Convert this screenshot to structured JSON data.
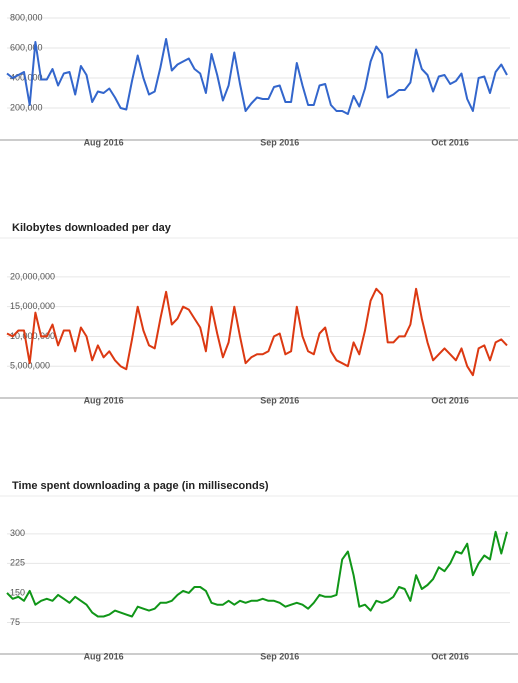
{
  "chart_data": [
    {
      "type": "line",
      "categories": [
        null,
        null,
        null,
        null,
        null,
        null,
        null,
        null,
        null,
        null,
        null,
        null,
        null,
        null,
        null,
        null,
        null,
        "Aug 2016",
        null,
        null,
        null,
        null,
        null,
        null,
        null,
        null,
        null,
        null,
        null,
        null,
        null,
        null,
        null,
        null,
        null,
        null,
        null,
        null,
        null,
        null,
        null,
        null,
        null,
        null,
        null,
        null,
        null,
        null,
        "Sep 2016",
        null,
        null,
        null,
        null,
        null,
        null,
        null,
        null,
        null,
        null,
        null,
        null,
        null,
        null,
        null,
        null,
        null,
        null,
        null,
        null,
        null,
        null,
        null,
        null,
        null,
        null,
        null,
        null,
        null,
        "Oct 2016",
        null,
        null,
        null,
        null,
        null,
        null,
        null,
        null,
        null,
        null
      ],
      "series": [
        {
          "color": "#3366cc",
          "values": [
            430000,
            400000,
            420000,
            440000,
            220000,
            640000,
            390000,
            390000,
            460000,
            350000,
            430000,
            440000,
            290000,
            480000,
            420000,
            240000,
            310000,
            300000,
            330000,
            270000,
            200000,
            190000,
            380000,
            550000,
            400000,
            290000,
            310000,
            470000,
            660000,
            450000,
            490000,
            510000,
            530000,
            460000,
            430000,
            300000,
            560000,
            420000,
            250000,
            350000,
            570000,
            360000,
            180000,
            230000,
            270000,
            260000,
            260000,
            340000,
            350000,
            240000,
            240000,
            500000,
            350000,
            220000,
            220000,
            350000,
            360000,
            220000,
            180000,
            180000,
            160000,
            280000,
            210000,
            330000,
            510000,
            610000,
            560000,
            270000,
            290000,
            320000,
            320000,
            370000,
            590000,
            460000,
            420000,
            310000,
            410000,
            420000,
            360000,
            380000,
            430000,
            260000,
            180000,
            400000,
            410000,
            300000,
            440000,
            490000,
            420000
          ]
        }
      ],
      "ylim": [
        0,
        880000
      ],
      "yticks": [
        {
          "value": 200000,
          "label": "200,000"
        },
        {
          "value": 400000,
          "label": "400,000"
        },
        {
          "value": 600000,
          "label": "600,000"
        },
        {
          "value": 800000,
          "label": "800,000"
        }
      ],
      "grid": true
    },
    {
      "type": "line",
      "title": "Kilobytes downloaded per day",
      "categories": [
        null,
        null,
        null,
        null,
        null,
        null,
        null,
        null,
        null,
        null,
        null,
        null,
        null,
        null,
        null,
        null,
        null,
        "Aug 2016",
        null,
        null,
        null,
        null,
        null,
        null,
        null,
        null,
        null,
        null,
        null,
        null,
        null,
        null,
        null,
        null,
        null,
        null,
        null,
        null,
        null,
        null,
        null,
        null,
        null,
        null,
        null,
        null,
        null,
        null,
        "Sep 2016",
        null,
        null,
        null,
        null,
        null,
        null,
        null,
        null,
        null,
        null,
        null,
        null,
        null,
        null,
        null,
        null,
        null,
        null,
        null,
        null,
        null,
        null,
        null,
        null,
        null,
        null,
        null,
        null,
        null,
        "Oct 2016",
        null,
        null,
        null,
        null,
        null,
        null,
        null,
        null,
        null,
        null
      ],
      "series": [
        {
          "color": "#dc3912",
          "values": [
            10500000,
            10000000,
            11000000,
            11000000,
            5500000,
            14000000,
            10000000,
            10000000,
            12000000,
            8500000,
            11000000,
            11000000,
            7500000,
            11500000,
            10000000,
            6000000,
            8500000,
            6500000,
            7500000,
            6000000,
            5000000,
            4500000,
            9500000,
            15000000,
            11000000,
            8500000,
            8000000,
            13000000,
            17500000,
            12000000,
            13000000,
            15000000,
            14500000,
            13000000,
            11500000,
            7500000,
            15000000,
            10500000,
            6500000,
            9000000,
            15000000,
            10000000,
            5500000,
            6500000,
            7000000,
            7000000,
            7500000,
            10000000,
            10500000,
            7000000,
            7500000,
            15000000,
            10000000,
            7500000,
            7000000,
            10500000,
            11500000,
            7500000,
            6000000,
            5500000,
            5000000,
            9000000,
            7000000,
            11000000,
            16000000,
            18000000,
            17000000,
            9000000,
            9000000,
            10000000,
            10000000,
            12000000,
            18000000,
            13000000,
            9000000,
            6000000,
            7000000,
            8000000,
            7000000,
            6000000,
            8000000,
            5000000,
            3500000,
            8000000,
            8500000,
            6000000,
            9000000,
            9500000,
            8500000
          ]
        }
      ],
      "ylim": [
        0,
        22500000
      ],
      "yticks": [
        {
          "value": 5000000,
          "label": "5,000,000"
        },
        {
          "value": 10000000,
          "label": "10,000,000"
        },
        {
          "value": 15000000,
          "label": "15,000,000"
        },
        {
          "value": 20000000,
          "label": "20,000,000"
        }
      ],
      "grid": true
    },
    {
      "type": "line",
      "title": "Time spent downloading a page (in milliseconds)",
      "categories": [
        null,
        null,
        null,
        null,
        null,
        null,
        null,
        null,
        null,
        null,
        null,
        null,
        null,
        null,
        null,
        null,
        null,
        "Aug 2016",
        null,
        null,
        null,
        null,
        null,
        null,
        null,
        null,
        null,
        null,
        null,
        null,
        null,
        null,
        null,
        null,
        null,
        null,
        null,
        null,
        null,
        null,
        null,
        null,
        null,
        null,
        null,
        null,
        null,
        null,
        "Sep 2016",
        null,
        null,
        null,
        null,
        null,
        null,
        null,
        null,
        null,
        null,
        null,
        null,
        null,
        null,
        null,
        null,
        null,
        null,
        null,
        null,
        null,
        null,
        null,
        null,
        null,
        null,
        null,
        null,
        null,
        "Oct 2016",
        null,
        null,
        null,
        null,
        null,
        null,
        null,
        null,
        null,
        null
      ],
      "series": [
        {
          "color": "#109618",
          "values": [
            150,
            135,
            140,
            130,
            155,
            120,
            130,
            135,
            130,
            145,
            135,
            125,
            140,
            130,
            120,
            100,
            90,
            90,
            95,
            105,
            100,
            95,
            90,
            115,
            110,
            105,
            110,
            125,
            125,
            130,
            145,
            155,
            150,
            165,
            165,
            155,
            125,
            120,
            120,
            130,
            120,
            130,
            125,
            130,
            130,
            135,
            130,
            130,
            125,
            115,
            120,
            125,
            120,
            110,
            125,
            145,
            140,
            140,
            145,
            235,
            255,
            195,
            115,
            120,
            105,
            130,
            125,
            130,
            140,
            165,
            160,
            130,
            195,
            160,
            170,
            185,
            215,
            205,
            225,
            255,
            250,
            275,
            195,
            225,
            245,
            235,
            305,
            250,
            305
          ]
        }
      ],
      "ylim": [
        0,
        330
      ],
      "yticks": [
        75,
        150,
        225,
        300
      ],
      "grid": true
    }
  ]
}
